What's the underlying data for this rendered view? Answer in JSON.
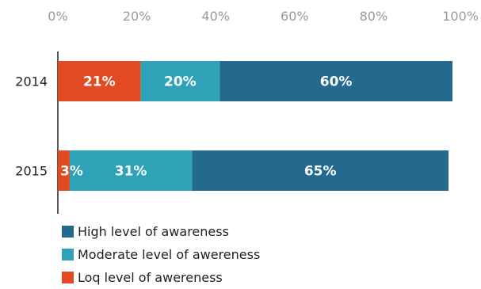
{
  "chart_data": {
    "type": "bar",
    "orientation": "horizontal",
    "stacked": true,
    "title": "",
    "xlabel": "",
    "ylabel": "",
    "xlim": [
      0,
      100
    ],
    "x_ticks": [
      "0%",
      "20%",
      "40%",
      "60%",
      "80%",
      "100%"
    ],
    "categories": [
      "2014",
      "2015"
    ],
    "series": [
      {
        "name": "Loq level of awereness",
        "color": "#e24a24",
        "values": [
          21,
          3
        ],
        "labels": [
          "21%",
          "3%"
        ]
      },
      {
        "name": "Moderate level of awereness",
        "color": "#2ea3b8",
        "values": [
          20,
          31
        ],
        "labels": [
          "20%",
          "31%"
        ]
      },
      {
        "name": "High level of awareness",
        "color": "#246a8e",
        "values": [
          60,
          65
        ],
        "labels": [
          "60%",
          "65%"
        ]
      }
    ],
    "legend_order": [
      2,
      1,
      0
    ],
    "legend_position": "bottom-left",
    "grid": false
  }
}
